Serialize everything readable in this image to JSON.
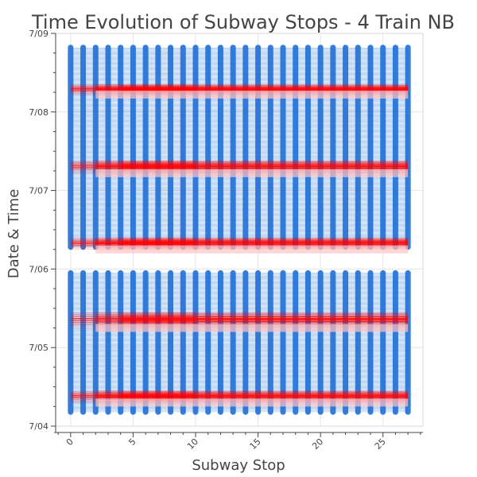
{
  "chart_data": {
    "type": "line",
    "title": "Time Evolution of Subway Stops - 4 Train NB",
    "xlabel": "Subway Stop",
    "ylabel": "Date & Time",
    "xlim": [
      -1.2,
      28.2
    ],
    "ylim": [
      "7/04",
      "7/09"
    ],
    "x_ticks": [
      0,
      5,
      10,
      15,
      20,
      25
    ],
    "x_tick_labels": [
      "0",
      "5",
      "10",
      "15",
      "20",
      "25"
    ],
    "y_ticks": [
      "7/04",
      "7/05",
      "7/06",
      "7/07",
      "7/08",
      "7/09"
    ],
    "stops": [
      0,
      1,
      2,
      3,
      4,
      5,
      6,
      7,
      8,
      9,
      10,
      11,
      12,
      13,
      14,
      15,
      16,
      17,
      18,
      19,
      20,
      21,
      22,
      23,
      24,
      25,
      26,
      27
    ],
    "grid": true,
    "series": [
      {
        "color": "#1f6fd6",
        "time_spans": [
          [
            0.18,
            1.95
          ],
          [
            2.28,
            4.82
          ]
        ]
      },
      {
        "color": "#ff0000",
        "peak_bands": [
          [
            0.3,
            0.45
          ],
          [
            1.25,
            1.45
          ],
          [
            2.25,
            2.4
          ],
          [
            3.22,
            3.38
          ],
          [
            4.22,
            4.35
          ]
        ]
      }
    ],
    "colors": {
      "blue_series": "#1f6fd6",
      "red_series": "#ff0000",
      "grid": "#e5e5e5",
      "axis": "#444444"
    }
  }
}
